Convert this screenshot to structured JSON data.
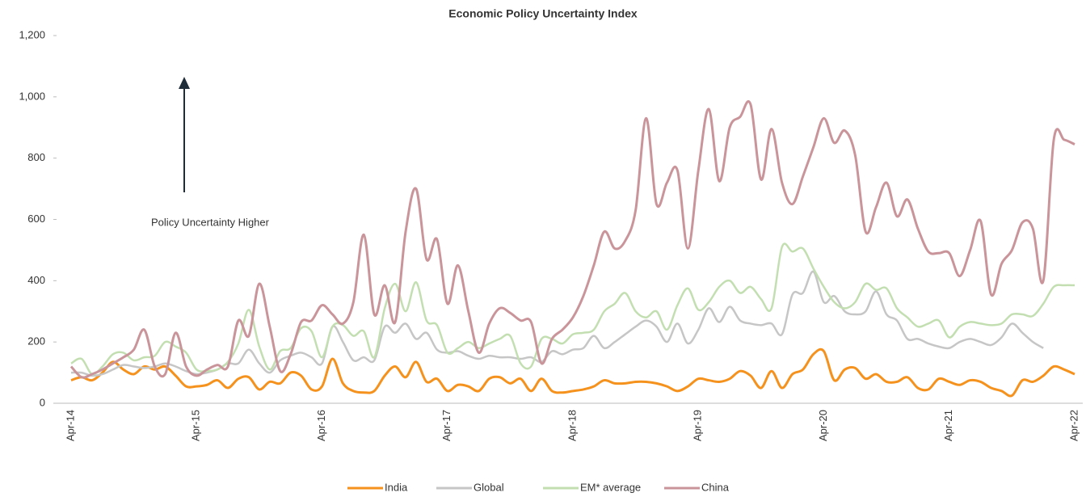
{
  "chart_data": {
    "type": "line",
    "title": "Economic Policy Uncertainty Index",
    "annotation": "Policy Uncertainty Higher",
    "categories": [
      "Apr-14",
      null,
      null,
      null,
      null,
      null,
      null,
      null,
      null,
      null,
      null,
      null,
      "Apr-15",
      null,
      null,
      null,
      null,
      null,
      null,
      null,
      null,
      null,
      null,
      null,
      "Apr-16",
      null,
      null,
      null,
      null,
      null,
      null,
      null,
      null,
      null,
      null,
      null,
      "Apr-17",
      null,
      null,
      null,
      null,
      null,
      null,
      null,
      null,
      null,
      null,
      null,
      "Apr-18",
      null,
      null,
      null,
      null,
      null,
      null,
      null,
      null,
      null,
      null,
      null,
      "Apr-19",
      null,
      null,
      null,
      null,
      null,
      null,
      null,
      null,
      null,
      null,
      null,
      "Apr-20",
      null,
      null,
      null,
      null,
      null,
      null,
      null,
      null,
      null,
      null,
      null,
      "Apr-21",
      null,
      null,
      null,
      null,
      null,
      null,
      null,
      null,
      null,
      null,
      null,
      "Apr-22"
    ],
    "series": [
      {
        "name": "India",
        "color": "#f5921e",
        "values": [
          75,
          85,
          75,
          100,
          135,
          110,
          95,
          120,
          110,
          120,
          90,
          55,
          55,
          60,
          75,
          50,
          80,
          85,
          45,
          70,
          65,
          100,
          90,
          45,
          55,
          145,
          65,
          40,
          35,
          40,
          90,
          120,
          85,
          135,
          70,
          80,
          40,
          60,
          55,
          40,
          80,
          85,
          65,
          80,
          40,
          80,
          40,
          35,
          40,
          45,
          55,
          75,
          65,
          65,
          70,
          70,
          65,
          55,
          40,
          55,
          80,
          75,
          70,
          80,
          105,
          90,
          50,
          105,
          50,
          95,
          110,
          160,
          170,
          75,
          110,
          115,
          80,
          95,
          70,
          70,
          85,
          50,
          45,
          80,
          70,
          60,
          75,
          70,
          50,
          40,
          25,
          75,
          70,
          90,
          120,
          110,
          95
        ]
      },
      {
        "name": "Global",
        "color": "#c6c6c6",
        "values": [
          100,
          100,
          90,
          95,
          110,
          125,
          120,
          115,
          120,
          130,
          120,
          105,
          95,
          100,
          110,
          130,
          130,
          175,
          130,
          100,
          140,
          155,
          165,
          150,
          130,
          250,
          200,
          140,
          150,
          140,
          250,
          230,
          260,
          210,
          230,
          175,
          165,
          170,
          155,
          145,
          155,
          150,
          150,
          145,
          150,
          135,
          170,
          160,
          175,
          180,
          220,
          180,
          200,
          225,
          250,
          270,
          250,
          200,
          260,
          195,
          240,
          310,
          265,
          315,
          270,
          260,
          255,
          260,
          225,
          355,
          360,
          430,
          330,
          350,
          300,
          290,
          300,
          365,
          290,
          270,
          210,
          210,
          195,
          185,
          180,
          200,
          210,
          200,
          190,
          215,
          260,
          230,
          200,
          180,
          null,
          null,
          null
        ]
      },
      {
        "name": "EM* average",
        "color": "#c3dfb2",
        "values": [
          130,
          145,
          95,
          120,
          160,
          165,
          140,
          150,
          155,
          200,
          185,
          165,
          110,
          105,
          110,
          135,
          195,
          305,
          185,
          110,
          170,
          180,
          245,
          235,
          150,
          250,
          255,
          220,
          235,
          150,
          310,
          390,
          300,
          395,
          270,
          255,
          165,
          180,
          200,
          180,
          195,
          210,
          220,
          130,
          120,
          210,
          210,
          195,
          225,
          230,
          240,
          300,
          325,
          360,
          300,
          280,
          300,
          240,
          320,
          375,
          305,
          330,
          380,
          400,
          360,
          380,
          340,
          310,
          510,
          495,
          505,
          440,
          380,
          330,
          310,
          330,
          390,
          370,
          375,
          310,
          280,
          250,
          260,
          270,
          215,
          250,
          265,
          260,
          255,
          260,
          290,
          290,
          285,
          325,
          380,
          385,
          385
        ]
      },
      {
        "name": "China",
        "color": "#c9959a",
        "values": [
          120,
          85,
          95,
          110,
          130,
          150,
          175,
          240,
          120,
          95,
          230,
          120,
          90,
          110,
          125,
          120,
          270,
          220,
          390,
          250,
          105,
          160,
          265,
          270,
          320,
          290,
          260,
          330,
          550,
          290,
          385,
          265,
          560,
          700,
          470,
          535,
          325,
          450,
          300,
          165,
          260,
          310,
          295,
          270,
          265,
          130,
          210,
          240,
          280,
          350,
          450,
          560,
          505,
          530,
          630,
          930,
          650,
          720,
          760,
          505,
          760,
          960,
          725,
          900,
          935,
          975,
          730,
          895,
          720,
          650,
          740,
          835,
          930,
          850,
          890,
          810,
          560,
          640,
          720,
          610,
          665,
          570,
          495,
          490,
          490,
          415,
          500,
          595,
          355,
          455,
          500,
          590,
          570,
          400,
          860,
          860,
          845
        ]
      }
    ],
    "ylim": [
      0,
      1200
    ],
    "yticks": [
      0,
      200,
      400,
      600,
      800,
      {
        "value": 1000,
        "label": "1,000"
      },
      {
        "value": 1200,
        "label": "1,200"
      }
    ]
  }
}
